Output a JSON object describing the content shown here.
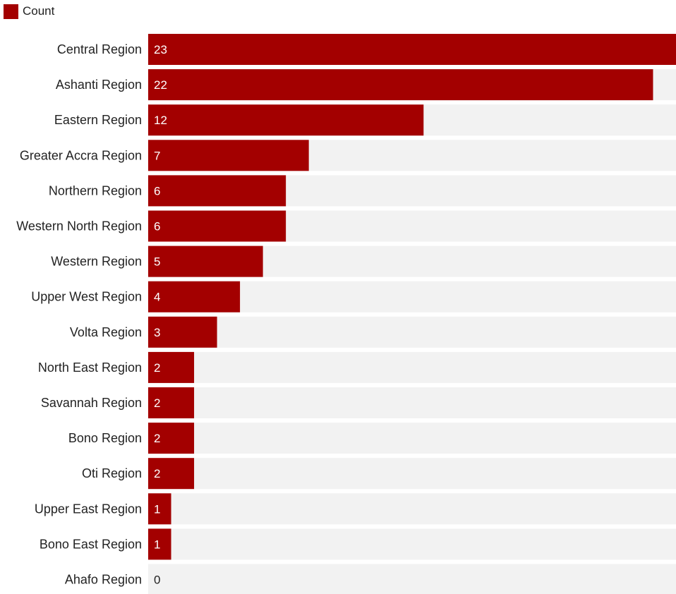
{
  "legend": {
    "label": "Count",
    "color": "#a30000"
  },
  "colors": {
    "bar": "#a30000",
    "track": "#f2f2f2",
    "value_inside": "#ffffff",
    "value_outside": "#222222"
  },
  "chart_data": {
    "type": "bar",
    "orientation": "horizontal",
    "categories": [
      "Central Region",
      "Ashanti Region",
      "Eastern Region",
      "Greater Accra Region",
      "Northern Region",
      "Western North Region",
      "Western Region",
      "Upper West Region",
      "Volta Region",
      "North East Region",
      "Savannah Region",
      "Bono Region",
      "Oti Region",
      "Upper East Region",
      "Bono East Region",
      "Ahafo Region"
    ],
    "series": [
      {
        "name": "Count",
        "values": [
          23,
          22,
          12,
          7,
          6,
          6,
          5,
          4,
          3,
          2,
          2,
          2,
          2,
          1,
          1,
          0
        ]
      }
    ],
    "xlim": [
      0,
      23
    ],
    "legend_position": "top-left",
    "grid": false
  }
}
